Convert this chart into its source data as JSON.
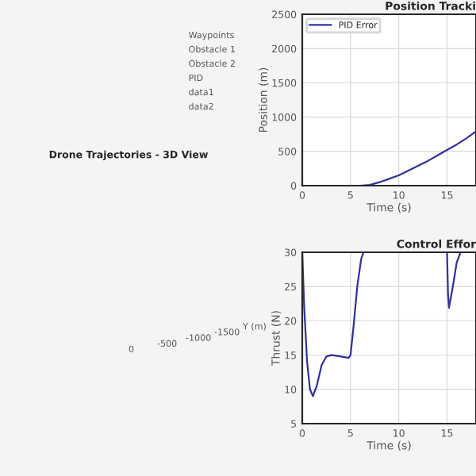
{
  "chart_data": [
    {
      "type": "other",
      "title": "Drone Trajectories - 3D View",
      "annotations": [
        "Waypoints",
        "Obstacle 1",
        "Obstacle 2",
        "PID",
        "data1",
        "data2",
        "0",
        "-500",
        "-1000",
        "-1500",
        "Y (m)"
      ]
    },
    {
      "type": "line",
      "title": "Position Tracki",
      "xlabel": "Time (s)",
      "ylabel": "Position (m)",
      "xlim": [
        0,
        18
      ],
      "xticks": [
        0,
        5,
        10,
        15
      ],
      "ylim": [
        0,
        2500
      ],
      "yticks": [
        0,
        500,
        1000,
        1500,
        2000,
        2500
      ],
      "grid": true,
      "legend": "top left",
      "series": [
        {
          "name": "PID Error",
          "color": "#3030a0",
          "x": [
            0,
            6,
            7,
            8,
            9,
            10,
            11,
            12,
            13,
            14,
            15,
            16,
            17,
            18
          ],
          "values": [
            0,
            0,
            10,
            50,
            100,
            150,
            220,
            290,
            360,
            440,
            520,
            600,
            690,
            790
          ]
        }
      ]
    },
    {
      "type": "line",
      "title": "Control Effor",
      "xlabel": "Time (s)",
      "ylabel": "Thrust (N)",
      "xlim": [
        0,
        18
      ],
      "xticks": [
        0,
        5,
        10,
        15
      ],
      "ylim": [
        5,
        30
      ],
      "yticks": [
        5,
        10,
        15,
        20,
        25,
        30
      ],
      "grid": true,
      "series": [
        {
          "color": "#3030a0",
          "x": [
            0,
            0.2,
            0.5,
            0.8,
            1.1,
            1.5,
            2,
            2.5,
            3,
            3.5,
            4,
            4.8,
            5,
            5.3,
            5.7,
            6.1,
            6.35,
            15,
            15.1,
            15.2,
            15.6,
            16,
            16.4,
            18
          ],
          "values": [
            30,
            22,
            14,
            10,
            9,
            10.5,
            13.5,
            14.8,
            15,
            14.9,
            14.8,
            14.6,
            15,
            19,
            25,
            29,
            30,
            30,
            24,
            21.9,
            25,
            28.5,
            30,
            30
          ]
        }
      ]
    }
  ]
}
